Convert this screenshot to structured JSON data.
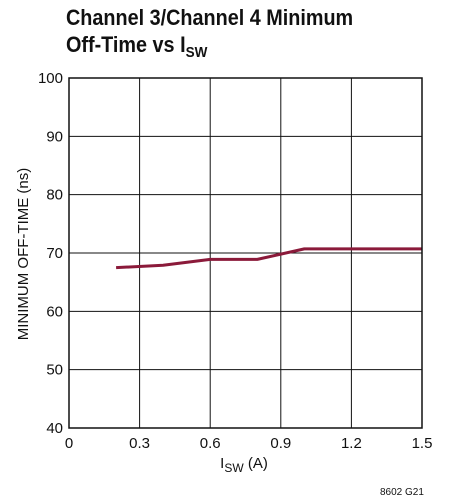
{
  "chart_data": {
    "type": "line",
    "title_line1": "Channel 3/Channel 4 Minimum",
    "title_line2_main": "Off-Time vs I",
    "title_line2_sub": "SW",
    "xlabel_main": "I",
    "xlabel_sub": "SW",
    "xlabel_unit": " (A)",
    "ylabel": "MINIMUM OFF-TIME (ns)",
    "xlim": [
      0,
      1.5
    ],
    "ylim": [
      40,
      100
    ],
    "x_ticks": [
      "0",
      "0.3",
      "0.6",
      "0.9",
      "1.2",
      "1.5"
    ],
    "y_ticks": [
      "40",
      "50",
      "60",
      "70",
      "80",
      "90",
      "100"
    ],
    "grid": true,
    "series": [
      {
        "x": [
          0.2,
          0.4,
          0.6,
          0.8,
          1.0,
          1.2,
          1.5
        ],
        "y": [
          67.5,
          67.9,
          68.9,
          68.9,
          70.7,
          70.7,
          70.7
        ]
      }
    ],
    "line_color": "#8b1a3a",
    "note": "8602 G21"
  }
}
